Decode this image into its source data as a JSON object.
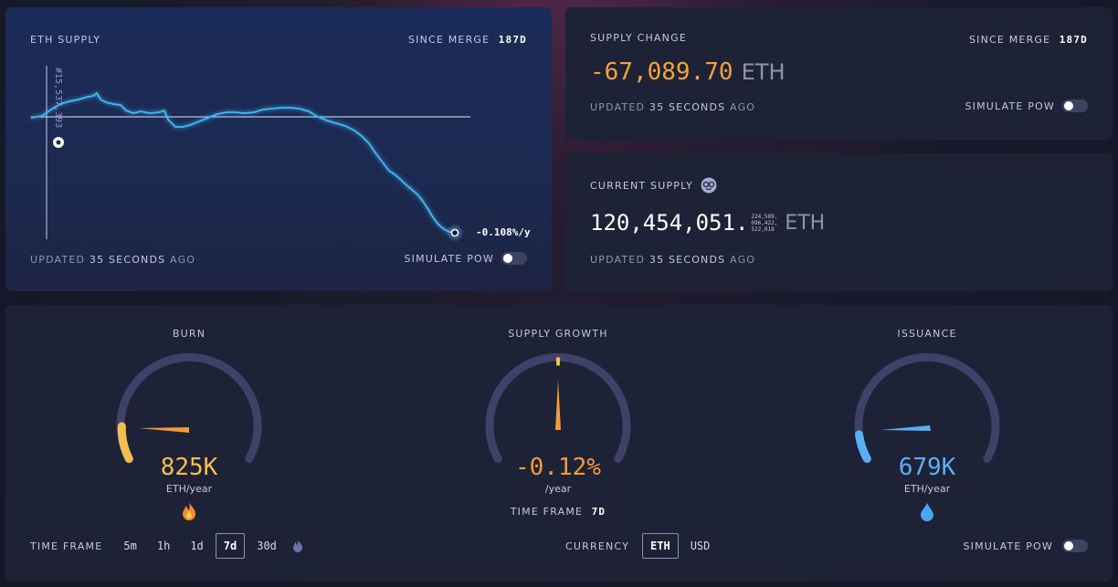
{
  "eth_supply": {
    "title": "ETH SUPPLY",
    "since_merge_label": "SINCE MERGE",
    "since_merge_value": "187d",
    "block_label": "#15,537,393",
    "rate_label": "-0.108%/y",
    "updated_prefix": "UPDATED",
    "updated_value": "35 SECONDS",
    "updated_suffix": "AGO",
    "simulate_label": "SIMULATE PoW"
  },
  "supply_change": {
    "title": "SUPPLY CHANGE",
    "since_merge_label": "SINCE MERGE",
    "since_merge_value": "187d",
    "value": "-67,089.70",
    "unit": "ETH",
    "updated_prefix": "UPDATED",
    "updated_value": "35 SECONDS",
    "updated_suffix": "AGO",
    "simulate_label": "SIMULATE PoW",
    "value_color": "#f2a33a"
  },
  "current_supply": {
    "title": "CURRENT SUPPLY",
    "icon": "nerd-face-icon",
    "value": "120,454,051.",
    "decimals_line1": "224,589,",
    "decimals_line2": "096,422,",
    "decimals_line3": "522,018",
    "unit": "ETH",
    "updated_prefix": "UPDATED",
    "updated_value": "35 SECONDS",
    "updated_suffix": "AGO"
  },
  "gauges": {
    "burn": {
      "title": "BURN",
      "value": "825K",
      "unit": "ETH/year",
      "icon": "fire-icon",
      "color": "#f4bf4f",
      "level": 0.14
    },
    "supply_growth": {
      "title": "SUPPLY GROWTH",
      "value": "-0.12%",
      "unit": "/year",
      "color": "#f29a3c",
      "level": 0.5,
      "time_frame_label": "TIME FRAME",
      "time_frame_value": "7d"
    },
    "issuance": {
      "title": "ISSUANCE",
      "value": "679K",
      "unit": "ETH/year",
      "icon": "droplet-icon",
      "color": "#5aaef2",
      "level": 0.1
    }
  },
  "controls": {
    "time_frame_label": "TIME FRAME",
    "time_frames": [
      "5m",
      "1h",
      "1d",
      "7d",
      "30d"
    ],
    "time_frame_selected": "7d",
    "time_frame_extra_icon": "ultrasound-fire-icon",
    "currency_label": "CURRENCY",
    "currency_eth": "ETH",
    "currency_usd": "USD",
    "currency_selected": "ETH",
    "simulate_label": "SIMULATE PoW"
  }
}
